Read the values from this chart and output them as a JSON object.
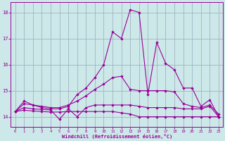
{
  "xlabel": "Windchill (Refroidissement éolien,°C)",
  "background_color": "#cce8e8",
  "grid_color": "#99aabb",
  "line_color": "#990099",
  "xlim_min": -0.5,
  "xlim_max": 23.5,
  "ylim_min": 13.6,
  "ylim_max": 18.4,
  "yticks": [
    14,
    15,
    16,
    17,
    18
  ],
  "xticks": [
    0,
    1,
    2,
    3,
    4,
    5,
    6,
    7,
    8,
    9,
    10,
    11,
    12,
    13,
    14,
    15,
    16,
    17,
    18,
    19,
    20,
    21,
    22,
    23
  ],
  "series": [
    [
      14.2,
      14.6,
      14.45,
      14.35,
      14.3,
      14.3,
      14.4,
      14.85,
      15.1,
      15.5,
      16.0,
      17.25,
      17.0,
      18.1,
      18.0,
      14.85,
      16.85,
      16.05,
      15.8,
      15.1,
      15.1,
      14.4,
      14.65,
      14.0
    ],
    [
      14.2,
      14.5,
      14.45,
      14.4,
      14.35,
      14.35,
      14.45,
      14.6,
      14.8,
      15.05,
      15.25,
      15.5,
      15.55,
      15.05,
      15.0,
      15.0,
      15.0,
      15.0,
      14.95,
      14.5,
      14.4,
      14.35,
      14.45,
      14.1
    ],
    [
      14.2,
      14.35,
      14.3,
      14.28,
      14.26,
      13.9,
      14.3,
      14.0,
      14.35,
      14.45,
      14.45,
      14.45,
      14.45,
      14.45,
      14.4,
      14.35,
      14.35,
      14.35,
      14.35,
      14.3,
      14.3,
      14.3,
      14.4,
      14.0
    ],
    [
      14.2,
      14.25,
      14.22,
      14.2,
      14.18,
      14.18,
      14.2,
      14.2,
      14.2,
      14.2,
      14.2,
      14.2,
      14.15,
      14.1,
      14.0,
      14.0,
      14.0,
      14.0,
      14.0,
      14.0,
      14.0,
      14.0,
      14.0,
      14.0
    ]
  ]
}
